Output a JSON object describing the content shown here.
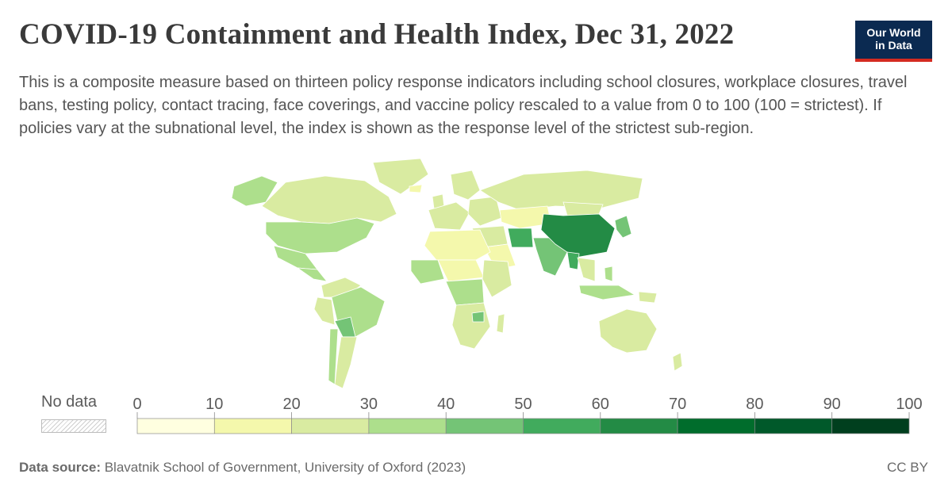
{
  "title": "COVID-19 Containment and Health Index, Dec 31, 2022",
  "subtitle": "This is a composite measure based on thirteen policy response indicators including school closures, workplace closures, travel bans, testing policy, contact tracing, face coverings, and vaccine policy rescaled to a value from 0 to 100 (100 = strictest). If policies vary at the subnational level, the index is shown as the response level of the strictest sub-region.",
  "logo": {
    "line1": "Our World",
    "line2": "in Data"
  },
  "legend": {
    "no_data_label": "No data",
    "ticks": [
      "0",
      "10",
      "20",
      "30",
      "40",
      "50",
      "60",
      "70",
      "80",
      "90",
      "100"
    ],
    "bins": [
      {
        "from": 0,
        "to": 10,
        "color": "#ffffe0"
      },
      {
        "from": 10,
        "to": 20,
        "color": "#f4f8ac"
      },
      {
        "from": 20,
        "to": 30,
        "color": "#d9eba1"
      },
      {
        "from": 30,
        "to": 40,
        "color": "#addf8c"
      },
      {
        "from": 40,
        "to": 50,
        "color": "#74c476"
      },
      {
        "from": 50,
        "to": 60,
        "color": "#41ab5d"
      },
      {
        "from": 60,
        "to": 70,
        "color": "#238b45"
      },
      {
        "from": 70,
        "to": 80,
        "color": "#006d2c"
      },
      {
        "from": 80,
        "to": 90,
        "color": "#00592a"
      },
      {
        "from": 90,
        "to": 100,
        "color": "#003f1e"
      }
    ]
  },
  "regions": [
    {
      "name": "canada",
      "value": 22
    },
    {
      "name": "alaska",
      "value": 38
    },
    {
      "name": "greenland",
      "value": 22
    },
    {
      "name": "united-states",
      "value": 38
    },
    {
      "name": "mexico",
      "value": 35
    },
    {
      "name": "central-america",
      "value": 32
    },
    {
      "name": "colombia-venezuela",
      "value": 20
    },
    {
      "name": "peru",
      "value": 22
    },
    {
      "name": "brazil",
      "value": 35
    },
    {
      "name": "bolivia-paraguay",
      "value": 48
    },
    {
      "name": "argentina",
      "value": 28
    },
    {
      "name": "chile",
      "value": 30
    },
    {
      "name": "iceland",
      "value": 12
    },
    {
      "name": "uk-ireland",
      "value": 20
    },
    {
      "name": "scandinavia",
      "value": 22
    },
    {
      "name": "western-europe",
      "value": 25
    },
    {
      "name": "eastern-europe",
      "value": 28
    },
    {
      "name": "russia",
      "value": 20
    },
    {
      "name": "kazakhstan",
      "value": 15
    },
    {
      "name": "mongolia",
      "value": 25
    },
    {
      "name": "north-africa",
      "value": 14
    },
    {
      "name": "west-africa",
      "value": 32
    },
    {
      "name": "central-africa",
      "value": 18
    },
    {
      "name": "east-africa",
      "value": 25
    },
    {
      "name": "drc",
      "value": 32
    },
    {
      "name": "southern-africa",
      "value": 20
    },
    {
      "name": "zimbabwe",
      "value": 48
    },
    {
      "name": "madagascar",
      "value": 25
    },
    {
      "name": "middle-east",
      "value": 22
    },
    {
      "name": "saudi-arabia",
      "value": 14
    },
    {
      "name": "iran",
      "value": 50
    },
    {
      "name": "india",
      "value": 40
    },
    {
      "name": "china",
      "value": 65
    },
    {
      "name": "myanmar",
      "value": 52
    },
    {
      "name": "southeast-asia",
      "value": 25
    },
    {
      "name": "japan-korea",
      "value": 40
    },
    {
      "name": "philippines",
      "value": 38
    },
    {
      "name": "indonesia",
      "value": 32
    },
    {
      "name": "png",
      "value": 22
    },
    {
      "name": "australia",
      "value": 22
    },
    {
      "name": "new-zealand",
      "value": 28
    }
  ],
  "footer": {
    "source_label": "Data source:",
    "source_text": "Blavatnik School of Government, University of Oxford (2023)",
    "license": "CC BY"
  }
}
